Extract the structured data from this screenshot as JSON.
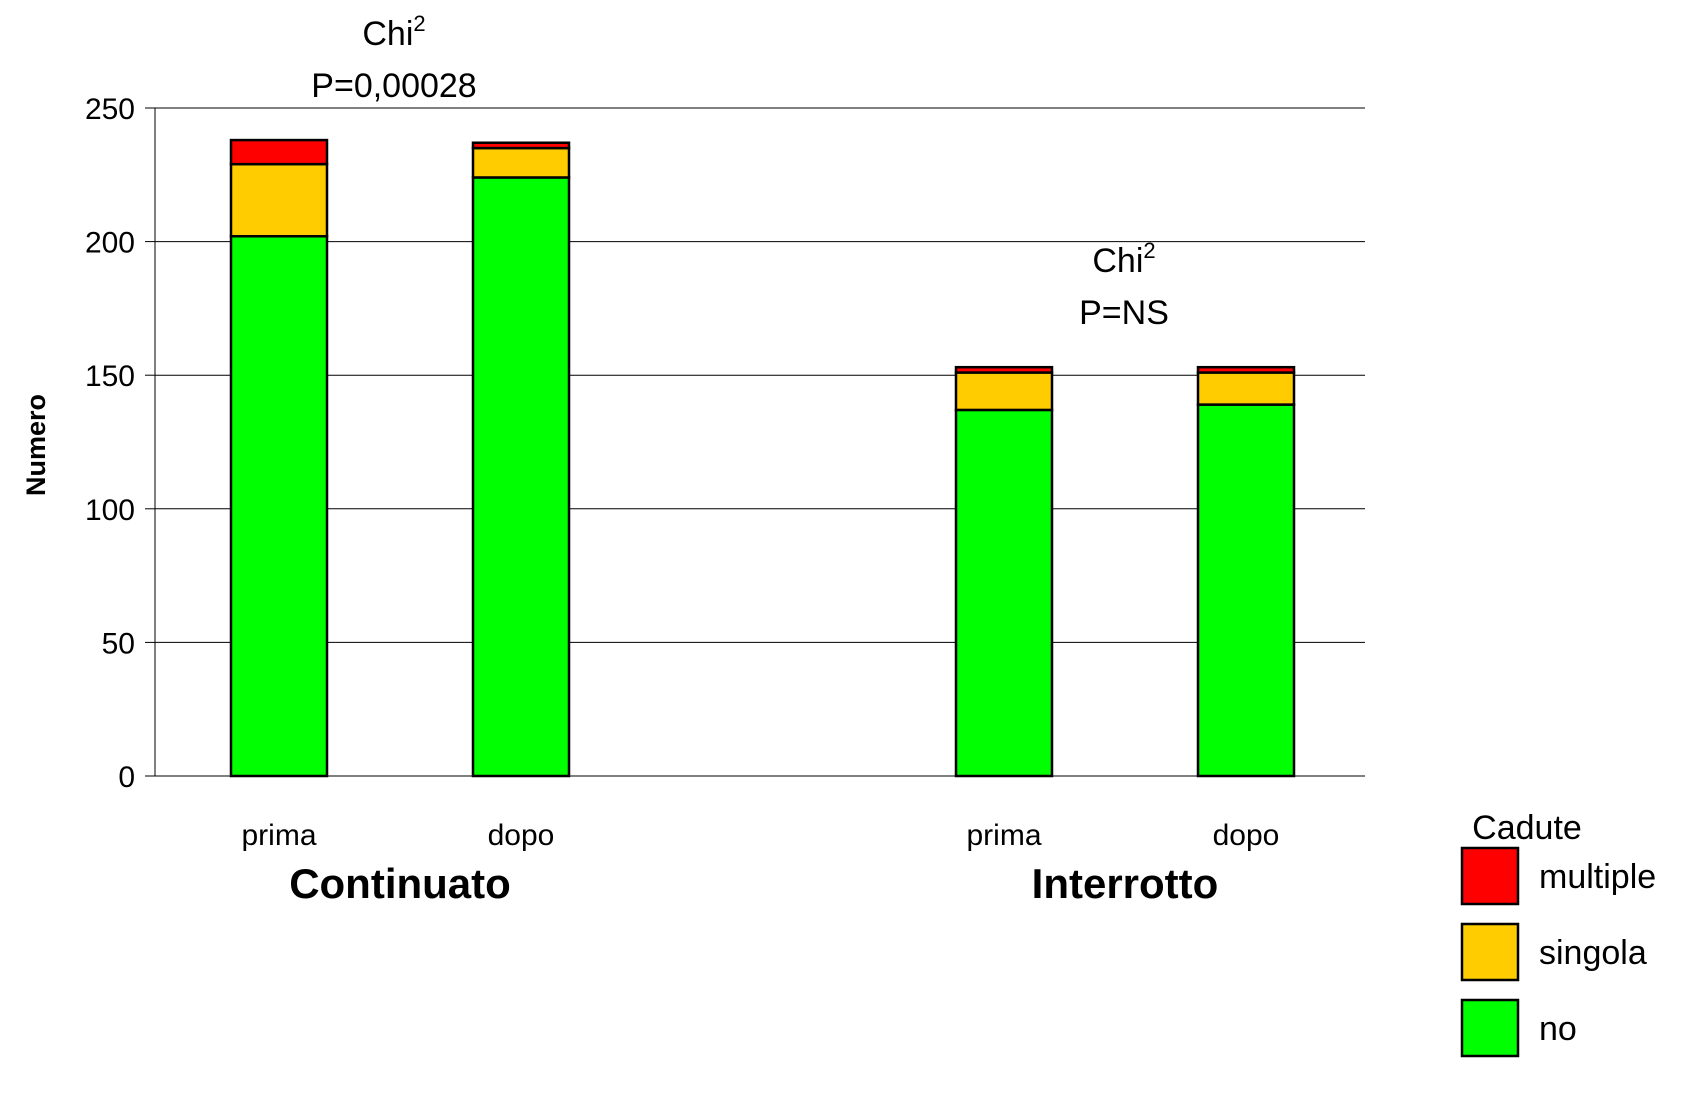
{
  "chart_data": {
    "type": "bar",
    "stacked": true,
    "ylabel": "Numero",
    "ylim": [
      0,
      250
    ],
    "yticks": [
      0,
      50,
      100,
      150,
      200,
      250
    ],
    "grid": true,
    "groups": [
      {
        "label": "Continuato",
        "annotation": {
          "chi_label": "Chi",
          "chi_sup": "2",
          "p_label": "P=0,00028"
        },
        "bars": [
          {
            "category": "prima",
            "values": {
              "no": 202,
              "singola": 27,
              "multiple": 9
            }
          },
          {
            "category": "dopo",
            "values": {
              "no": 224,
              "singola": 11,
              "multiple": 2
            }
          }
        ]
      },
      {
        "label": "Interrotto",
        "annotation": {
          "chi_label": "Chi",
          "chi_sup": "2",
          "p_label": "P=NS"
        },
        "bars": [
          {
            "category": "prima",
            "values": {
              "no": 137,
              "singola": 14,
              "multiple": 2
            }
          },
          {
            "category": "dopo",
            "values": {
              "no": 139,
              "singola": 12,
              "multiple": 2
            }
          }
        ]
      }
    ],
    "series": [
      {
        "name": "no",
        "color": "#00ff00"
      },
      {
        "name": "singola",
        "color": "#ffcc00"
      },
      {
        "name": "multiple",
        "color": "#ff0000"
      }
    ],
    "legend": {
      "title": "Cadute",
      "placement": "bottom-right",
      "order": [
        "multiple",
        "singola",
        "no"
      ]
    }
  }
}
